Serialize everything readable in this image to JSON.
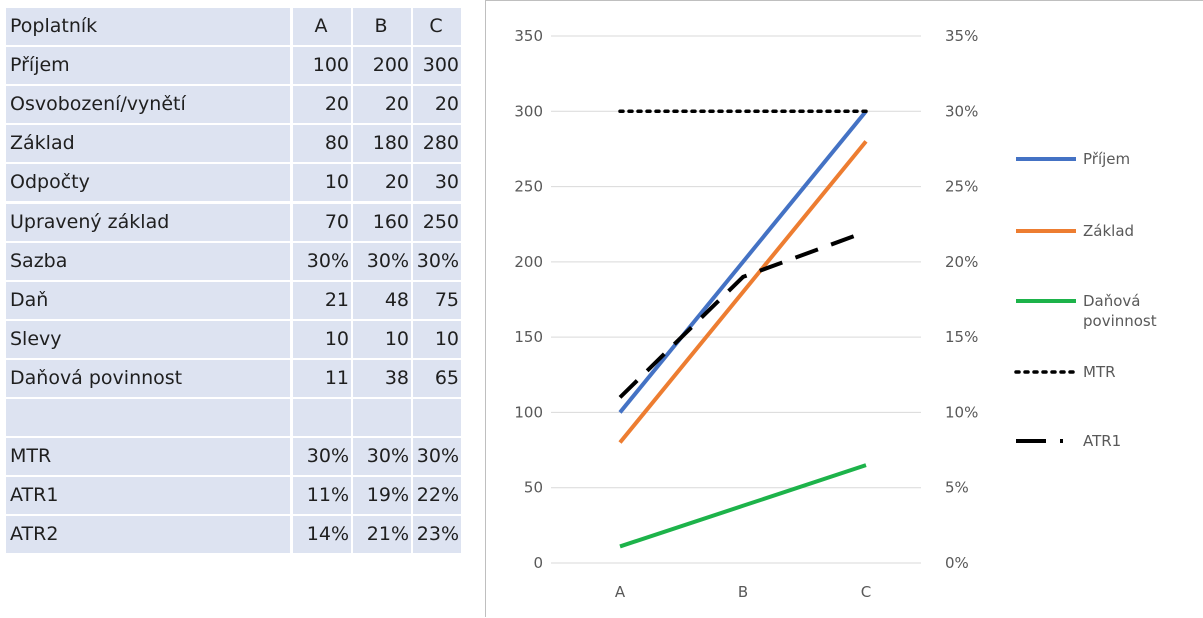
{
  "table": {
    "header": {
      "label": "Poplatník",
      "cols": [
        "A",
        "B",
        "C"
      ]
    },
    "rows": [
      {
        "label": "Příjem",
        "values": [
          "100",
          "200",
          "300"
        ]
      },
      {
        "label": "Osvobození/vynětí",
        "values": [
          "20",
          "20",
          "20"
        ]
      },
      {
        "label": "Základ",
        "values": [
          "80",
          "180",
          "280"
        ]
      },
      {
        "label": "Odpočty",
        "values": [
          "10",
          "20",
          "30"
        ]
      },
      {
        "label": "Upravený základ",
        "values": [
          "70",
          "160",
          "250"
        ]
      },
      {
        "label": "Sazba",
        "values": [
          "30%",
          "30%",
          "30%"
        ]
      },
      {
        "label": "Daň",
        "values": [
          "21",
          "48",
          "75"
        ]
      },
      {
        "label": "Slevy",
        "values": [
          "10",
          "10",
          "10"
        ]
      },
      {
        "label": "Daňová povinnost",
        "values": [
          "11",
          "38",
          "65"
        ]
      },
      {
        "label": "",
        "values": [
          "",
          "",
          ""
        ]
      },
      {
        "label": "MTR",
        "values": [
          "30%",
          "30%",
          "30%"
        ]
      },
      {
        "label": "ATR1",
        "values": [
          "11%",
          "19%",
          "22%"
        ]
      },
      {
        "label": "ATR2",
        "values": [
          "14%",
          "21%",
          "23%"
        ]
      }
    ]
  },
  "chart_data": {
    "type": "line",
    "categories": [
      "A",
      "B",
      "C"
    ],
    "y_left": {
      "min": 0,
      "max": 350,
      "ticks": [
        "0",
        "50",
        "100",
        "150",
        "200",
        "250",
        "300",
        "350"
      ]
    },
    "y_right": {
      "min": 0,
      "max": 0.35,
      "ticks": [
        "0%",
        "5%",
        "10%",
        "15%",
        "20%",
        "25%",
        "30%",
        "35%"
      ]
    },
    "grid": true,
    "legend_position": "right",
    "series": [
      {
        "name": "Příjem",
        "axis": "left",
        "values": [
          100,
          200,
          300
        ],
        "color": "#4472c4",
        "style": "solid"
      },
      {
        "name": "Základ",
        "axis": "left",
        "values": [
          80,
          180,
          280
        ],
        "color": "#ed7d31",
        "style": "solid"
      },
      {
        "name": "Daňová povinnost",
        "legend_lines": [
          "Daňová",
          "povinnost"
        ],
        "axis": "left",
        "values": [
          11,
          38,
          65
        ],
        "color": "#1db34a",
        "style": "solid"
      },
      {
        "name": "MTR",
        "axis": "right",
        "values": [
          0.3,
          0.3,
          0.3
        ],
        "color": "#000000",
        "style": "dotted"
      },
      {
        "name": "ATR1",
        "axis": "right",
        "values": [
          0.11,
          0.19,
          0.22
        ],
        "color": "#000000",
        "style": "dashed"
      }
    ]
  }
}
